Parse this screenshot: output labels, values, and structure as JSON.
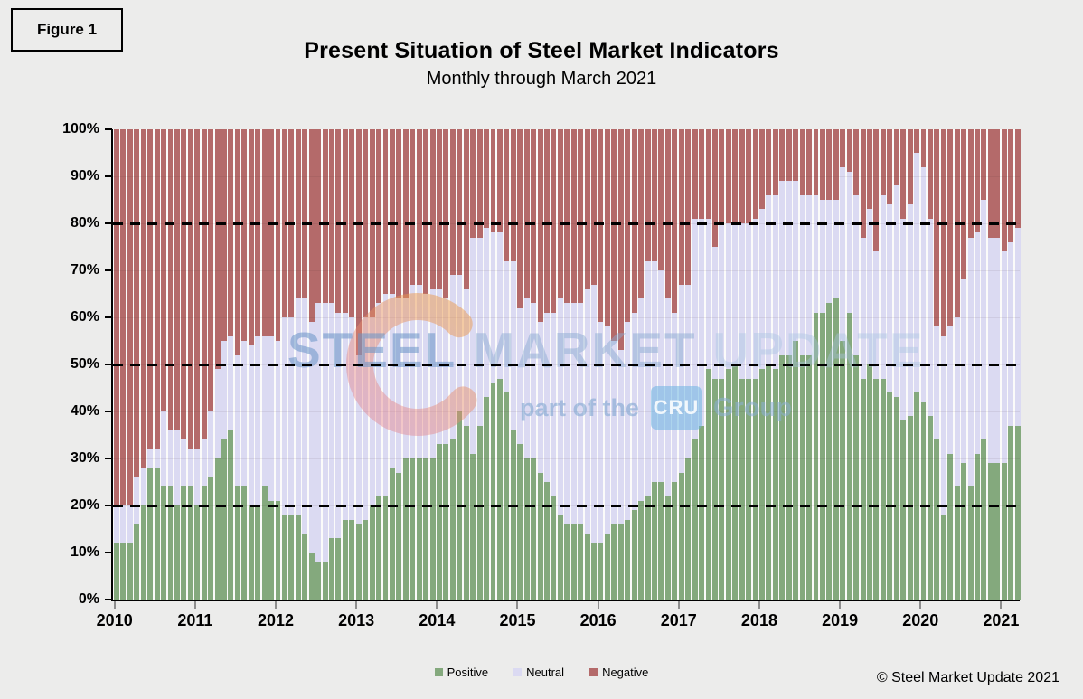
{
  "figure_label": "Figure 1",
  "title": "Present Situation of Steel Market Indicators",
  "subtitle": "Monthly through March 2021",
  "footer_copyright": "© Steel Market Update 2021",
  "watermark": {
    "word1": "STEEL",
    "word2": "MARKET",
    "word3": "UPDATE",
    "tagline_prefix": "part of the",
    "logo_text": "CRU",
    "tagline_suffix": "Group",
    "crescent_icon": "crescent-swoosh-icon"
  },
  "colors": {
    "positive": "#84a97d",
    "neutral": "#dbdaf2",
    "negative": "#b46a6a",
    "background": "#ececeb",
    "plot_background": "#fbfbfa",
    "axis": "#000000",
    "x_tick": "#8e8e8e"
  },
  "legend": {
    "items": [
      {
        "label": "Positive",
        "color": "#84a97d"
      },
      {
        "label": "Neutral",
        "color": "#dbdaf2"
      },
      {
        "label": "Negative",
        "color": "#b46a6a"
      }
    ]
  },
  "chart_data": {
    "type": "bar",
    "stacked": true,
    "stack_total": 100,
    "x_start": "2010-01",
    "x_end": "2021-03",
    "interval": "monthly",
    "x_axis_tick_labels": [
      "2010",
      "2011",
      "2012",
      "2013",
      "2014",
      "2015",
      "2016",
      "2017",
      "2018",
      "2019",
      "2020",
      "2021"
    ],
    "y_axis_tick_labels_top_to_bottom": [
      "100%",
      "90%",
      "80%",
      "70%",
      "60%",
      "50%",
      "40%",
      "30%",
      "20%",
      "10%",
      "0%"
    ],
    "ylim": [
      0,
      100
    ],
    "dashed_reference_lines_pct": [
      20,
      50,
      80
    ],
    "grid": "faint horizontal every 10%",
    "legend_position": "bottom-center",
    "series": [
      {
        "name": "Positive",
        "color": "#84a97d",
        "values": [
          12,
          12,
          12,
          16,
          20,
          28,
          28,
          24,
          24,
          20,
          24,
          24,
          20,
          24,
          26,
          30,
          34,
          36,
          24,
          24,
          20,
          20,
          24,
          21,
          21,
          18,
          18,
          18,
          14,
          10,
          8,
          8,
          13,
          13,
          17,
          17,
          16,
          17,
          20,
          22,
          22,
          28,
          27,
          30,
          30,
          30,
          30,
          30,
          33,
          33,
          34,
          40,
          37,
          31,
          37,
          43,
          46,
          47,
          44,
          36,
          33,
          30,
          30,
          27,
          25,
          22,
          18,
          16,
          16,
          16,
          14,
          12,
          12,
          14,
          16,
          16,
          17,
          19,
          21,
          22,
          25,
          25,
          22,
          25,
          27,
          30,
          34,
          37,
          49,
          47,
          47,
          49,
          50,
          47,
          47,
          47,
          49,
          50,
          49,
          52,
          52,
          55,
          52,
          52,
          61,
          61,
          63,
          64,
          55,
          61,
          52,
          47,
          50,
          47,
          47,
          44,
          43,
          38,
          39,
          44,
          42,
          39,
          34,
          18,
          31,
          24,
          29,
          24,
          31,
          34,
          29,
          29,
          29,
          37,
          37
        ]
      },
      {
        "name": "Neutral",
        "color": "#dbdaf2",
        "values": [
          8,
          8,
          8,
          10,
          8,
          4,
          4,
          16,
          12,
          16,
          10,
          8,
          12,
          10,
          14,
          19,
          21,
          20,
          28,
          31,
          34,
          36,
          32,
          35,
          34,
          42,
          42,
          46,
          50,
          49,
          55,
          55,
          50,
          48,
          44,
          43,
          36,
          43,
          40,
          41,
          43,
          37,
          37,
          34,
          37,
          37,
          35,
          36,
          33,
          31,
          35,
          29,
          29,
          46,
          40,
          36,
          32,
          31,
          28,
          36,
          29,
          34,
          33,
          32,
          36,
          39,
          46,
          47,
          47,
          47,
          52,
          55,
          47,
          44,
          39,
          37,
          42,
          42,
          43,
          50,
          47,
          45,
          42,
          36,
          40,
          37,
          47,
          44,
          32,
          28,
          33,
          31,
          30,
          33,
          33,
          34,
          34,
          36,
          37,
          37,
          37,
          34,
          34,
          34,
          25,
          24,
          22,
          21,
          37,
          30,
          34,
          30,
          33,
          27,
          39,
          40,
          45,
          43,
          45,
          51,
          50,
          42,
          24,
          38,
          27,
          36,
          39,
          53,
          47,
          51,
          48,
          48,
          45,
          39,
          42
        ]
      },
      {
        "name": "Negative",
        "color": "#b46a6a",
        "values": [
          80,
          80,
          80,
          74,
          72,
          68,
          68,
          60,
          64,
          64,
          66,
          68,
          68,
          66,
          60,
          51,
          45,
          44,
          48,
          45,
          46,
          44,
          44,
          44,
          45,
          40,
          40,
          36,
          36,
          41,
          37,
          37,
          37,
          39,
          39,
          40,
          48,
          40,
          40,
          37,
          35,
          35,
          36,
          36,
          33,
          33,
          35,
          34,
          34,
          36,
          31,
          31,
          34,
          23,
          23,
          21,
          22,
          22,
          28,
          28,
          38,
          36,
          37,
          41,
          39,
          39,
          36,
          37,
          37,
          37,
          34,
          33,
          41,
          42,
          45,
          47,
          41,
          39,
          36,
          28,
          28,
          30,
          36,
          39,
          33,
          33,
          19,
          19,
          19,
          25,
          20,
          20,
          20,
          20,
          20,
          19,
          17,
          14,
          14,
          11,
          11,
          11,
          14,
          14,
          14,
          15,
          15,
          15,
          8,
          9,
          14,
          23,
          17,
          26,
          14,
          16,
          12,
          19,
          16,
          5,
          8,
          19,
          42,
          44,
          42,
          40,
          32,
          23,
          22,
          15,
          23,
          23,
          26,
          24,
          21
        ]
      }
    ]
  }
}
